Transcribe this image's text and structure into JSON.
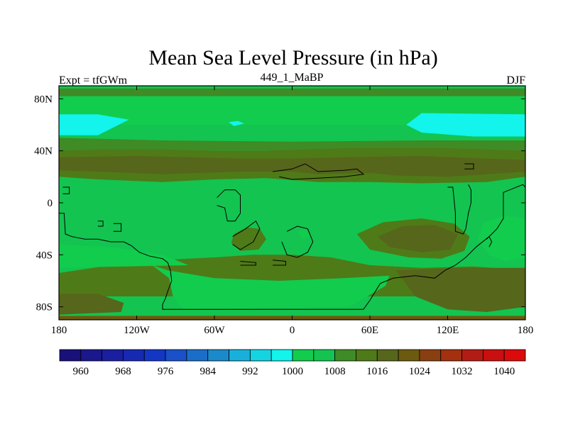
{
  "chart_data": {
    "type": "heatmap",
    "title": "Mean Sea Level Pressure (in hPa)",
    "left_label": "Expt = tfGWm",
    "center_label": "449_1_MaBP",
    "right_label": "DJF",
    "x_ticks": [
      {
        "value": -180,
        "label": "180"
      },
      {
        "value": -120,
        "label": "120W"
      },
      {
        "value": -60,
        "label": "60W"
      },
      {
        "value": 0,
        "label": "0"
      },
      {
        "value": 60,
        "label": "60E"
      },
      {
        "value": 120,
        "label": "120E"
      },
      {
        "value": 180,
        "label": "180"
      }
    ],
    "y_ticks": [
      {
        "value": 80,
        "label": "80N"
      },
      {
        "value": 40,
        "label": "40N"
      },
      {
        "value": 0,
        "label": "0"
      },
      {
        "value": -40,
        "label": "40S"
      },
      {
        "value": -80,
        "label": "80S"
      }
    ],
    "xlim": [
      -180,
      180
    ],
    "ylim": [
      -90,
      90
    ],
    "levels": [
      956,
      960,
      964,
      968,
      972,
      976,
      980,
      984,
      988,
      992,
      996,
      1000,
      1004,
      1008,
      1012,
      1016,
      1020,
      1024,
      1028,
      1032,
      1036,
      1040,
      1044
    ],
    "colors": [
      "#19107a",
      "#1b178c",
      "#1a1f9f",
      "#1629b0",
      "#1336c4",
      "#1a50c8",
      "#1b6ec8",
      "#1a8acb",
      "#18b0db",
      "#15d4e2",
      "#12f4ec",
      "#12cc4e",
      "#13c450",
      "#3f8b26",
      "#4f7a18",
      "#56661b",
      "#6c5a0f",
      "#8a3f10",
      "#a3300f",
      "#b31c14",
      "#c90f0f",
      "#db0b0b"
    ],
    "colorbar_labels": [
      {
        "value": 960,
        "label": "960"
      },
      {
        "value": 968,
        "label": "968"
      },
      {
        "value": 976,
        "label": "976"
      },
      {
        "value": 984,
        "label": "984"
      },
      {
        "value": 992,
        "label": "992"
      },
      {
        "value": 1000,
        "label": "1000"
      },
      {
        "value": 1008,
        "label": "1008"
      },
      {
        "value": 1016,
        "label": "1016"
      },
      {
        "value": 1024,
        "label": "1024"
      },
      {
        "value": 1032,
        "label": "1032"
      },
      {
        "value": 1040,
        "label": "1040"
      }
    ],
    "regions": [
      {
        "name": "band-1010-high-north",
        "value": 1010,
        "poly": [
          [
            -180,
            88
          ],
          [
            180,
            88
          ],
          [
            180,
            82
          ],
          [
            -180,
            82
          ]
        ]
      },
      {
        "name": "band-1002-north",
        "value": 1002,
        "poly": [
          [
            -180,
            82
          ],
          [
            180,
            82
          ],
          [
            180,
            60
          ],
          [
            -180,
            60
          ]
        ]
      },
      {
        "name": "low-998-northwest",
        "value": 998,
        "poly": [
          [
            -180,
            68
          ],
          [
            -150,
            68
          ],
          [
            -126,
            64
          ],
          [
            -150,
            52
          ],
          [
            -180,
            52
          ]
        ]
      },
      {
        "name": "low-998-northeast",
        "value": 998,
        "poly": [
          [
            180,
            68
          ],
          [
            100,
            69
          ],
          [
            88,
            60
          ],
          [
            100,
            54
          ],
          [
            140,
            51
          ],
          [
            180,
            51
          ]
        ]
      },
      {
        "name": "low-998-northcentral",
        "value": 998,
        "poly": [
          [
            -49,
            62
          ],
          [
            -42,
            63
          ],
          [
            -37,
            61
          ],
          [
            -45,
            59
          ]
        ]
      },
      {
        "name": "band-1010-midnorth",
        "value": 1010,
        "poly": [
          [
            -180,
            50
          ],
          [
            -100,
            48
          ],
          [
            0,
            47
          ],
          [
            100,
            48
          ],
          [
            180,
            48
          ],
          [
            180,
            40
          ],
          [
            -180,
            40
          ]
        ]
      },
      {
        "name": "ridge-1014-north",
        "value": 1014,
        "poly": [
          [
            -180,
            40
          ],
          [
            -150,
            41
          ],
          [
            -100,
            41
          ],
          [
            -60,
            40
          ],
          [
            -20,
            40
          ],
          [
            40,
            42
          ],
          [
            120,
            42
          ],
          [
            180,
            40
          ],
          [
            180,
            20
          ],
          [
            150,
            16
          ],
          [
            100,
            15
          ],
          [
            60,
            16
          ],
          [
            20,
            16
          ],
          [
            -20,
            19
          ],
          [
            -60,
            18
          ],
          [
            -100,
            16
          ],
          [
            -150,
            18
          ],
          [
            -180,
            20
          ]
        ]
      },
      {
        "name": "ridge-1018-north",
        "value": 1018,
        "poly": [
          [
            -180,
            35
          ],
          [
            -120,
            36
          ],
          [
            -80,
            35
          ],
          [
            -40,
            34
          ],
          [
            0,
            34
          ],
          [
            40,
            35
          ],
          [
            100,
            36
          ],
          [
            150,
            34
          ],
          [
            180,
            33
          ],
          [
            180,
            24
          ],
          [
            150,
            22
          ],
          [
            120,
            20
          ],
          [
            80,
            21
          ],
          [
            60,
            23
          ],
          [
            20,
            22
          ],
          [
            0,
            24
          ],
          [
            -40,
            24
          ],
          [
            -100,
            22
          ],
          [
            -150,
            24
          ],
          [
            -180,
            25
          ]
        ]
      },
      {
        "name": "ridge-1014-south",
        "value": 1014,
        "poly": [
          [
            -180,
            -54
          ],
          [
            -140,
            -48
          ],
          [
            -100,
            -44
          ],
          [
            -60,
            -42
          ],
          [
            -30,
            -40
          ],
          [
            0,
            -40
          ],
          [
            30,
            -42
          ],
          [
            60,
            -48
          ],
          [
            100,
            -50
          ],
          [
            140,
            -49
          ],
          [
            180,
            -52
          ],
          [
            180,
            -72
          ],
          [
            -180,
            -72
          ]
        ]
      },
      {
        "name": "cell-1014-africa",
        "value": 1014,
        "poly": [
          [
            -45,
            -24
          ],
          [
            -35,
            -19
          ],
          [
            -25,
            -20
          ],
          [
            -20,
            -28
          ],
          [
            -26,
            -36
          ],
          [
            -40,
            -37
          ],
          [
            -47,
            -31
          ]
        ]
      },
      {
        "name": "cell-1014-southpac",
        "value": 1014,
        "poly": [
          [
            50,
            -24
          ],
          [
            70,
            -15
          ],
          [
            100,
            -12
          ],
          [
            125,
            -16
          ],
          [
            137,
            -26
          ],
          [
            133,
            -37
          ],
          [
            115,
            -43
          ],
          [
            90,
            -42
          ],
          [
            60,
            -36
          ]
        ]
      },
      {
        "name": "cell-1018-southpac",
        "value": 1018,
        "poly": [
          [
            66,
            -26
          ],
          [
            85,
            -18
          ],
          [
            110,
            -17
          ],
          [
            128,
            -24
          ],
          [
            122,
            -36
          ],
          [
            100,
            -38
          ],
          [
            75,
            -34
          ]
        ]
      },
      {
        "name": "cell-1002-southeast",
        "value": 1002,
        "poly": [
          [
            148,
            -15
          ],
          [
            163,
            -10
          ],
          [
            180,
            -12
          ],
          [
            180,
            -42
          ],
          [
            164,
            -45
          ],
          [
            152,
            -40
          ],
          [
            143,
            -28
          ]
        ]
      },
      {
        "name": "cell-1002-island",
        "value": 1002,
        "poly": [
          [
            4,
            -22
          ],
          [
            11,
            -21
          ],
          [
            14,
            -26
          ],
          [
            8,
            -28
          ]
        ]
      },
      {
        "name": "cell-1002-southwest",
        "value": 1002,
        "poly": [
          [
            -180,
            -32
          ],
          [
            -140,
            -34
          ],
          [
            -100,
            -40
          ],
          [
            -80,
            -48
          ],
          [
            -180,
            -50
          ]
        ]
      },
      {
        "name": "trough-1002-south",
        "value": 1002,
        "poly": [
          [
            -108,
            -48
          ],
          [
            -96,
            -52
          ],
          [
            -60,
            -58
          ],
          [
            -10,
            -60
          ],
          [
            40,
            -58
          ],
          [
            75,
            -56
          ],
          [
            72,
            -64
          ],
          [
            44,
            -80
          ],
          [
            -84,
            -82
          ],
          [
            -92,
            -72
          ],
          [
            -95,
            -58
          ]
        ]
      },
      {
        "name": "ridge-1018-southeast",
        "value": 1018,
        "poly": [
          [
            80,
            -52
          ],
          [
            130,
            -50
          ],
          [
            180,
            -50
          ],
          [
            180,
            -80
          ],
          [
            150,
            -84
          ],
          [
            120,
            -82
          ],
          [
            95,
            -72
          ]
        ]
      },
      {
        "name": "ridge-1018-southwest",
        "value": 1018,
        "poly": [
          [
            -180,
            -70
          ],
          [
            -150,
            -70
          ],
          [
            -130,
            -77
          ],
          [
            -132,
            -84
          ],
          [
            -180,
            -86
          ]
        ]
      },
      {
        "name": "band-1022-south-edge",
        "value": 1022,
        "poly": [
          [
            -180,
            -87
          ],
          [
            180,
            -87
          ],
          [
            180,
            -90
          ],
          [
            -180,
            -90
          ]
        ]
      }
    ],
    "coastlines": [
      [
        [
          -177,
          12
        ],
        [
          -172,
          12
        ],
        [
          -172,
          7
        ],
        [
          -177,
          7
        ]
      ],
      [
        [
          -180,
          -8
        ],
        [
          -176,
          -8
        ],
        [
          -175,
          -24
        ],
        [
          -170,
          -26
        ],
        [
          -160,
          -28
        ],
        [
          -150,
          -28
        ],
        [
          -140,
          -30
        ],
        [
          -130,
          -30
        ],
        [
          -124,
          -33
        ],
        [
          -118,
          -38
        ],
        [
          -110,
          -41
        ],
        [
          -100,
          -43
        ],
        [
          -96,
          -46
        ],
        [
          -94,
          -52
        ],
        [
          -93,
          -60
        ],
        [
          -96,
          -68
        ],
        [
          -98,
          -74
        ],
        [
          -100,
          -78
        ],
        [
          -100,
          -82
        ],
        [
          -70,
          -82
        ],
        [
          -30,
          -82
        ],
        [
          10,
          -82
        ],
        [
          55,
          -82
        ],
        [
          60,
          -75
        ],
        [
          68,
          -62
        ],
        [
          78,
          -58
        ],
        [
          95,
          -56
        ],
        [
          110,
          -58
        ],
        [
          118,
          -52
        ],
        [
          126,
          -48
        ],
        [
          134,
          -42
        ],
        [
          142,
          -34
        ],
        [
          152,
          -26
        ],
        [
          158,
          -20
        ],
        [
          163,
          -12
        ],
        [
          163,
          8
        ],
        [
          178,
          14
        ],
        [
          180,
          12
        ]
      ],
      [
        [
          -138,
          -16
        ],
        [
          -132,
          -16
        ],
        [
          -132,
          -22
        ],
        [
          -138,
          -22
        ]
      ],
      [
        [
          -150,
          -14
        ],
        [
          -146,
          -14
        ],
        [
          -146,
          -18
        ],
        [
          -150,
          -18
        ]
      ],
      [
        [
          -58,
          4
        ],
        [
          -52,
          10
        ],
        [
          -44,
          10
        ],
        [
          -40,
          6
        ],
        [
          -40,
          -8
        ],
        [
          -44,
          -14
        ],
        [
          -50,
          -14
        ],
        [
          -52,
          -4
        ],
        [
          -58,
          -2
        ]
      ],
      [
        [
          -46,
          -26
        ],
        [
          -36,
          -20
        ],
        [
          -28,
          -14
        ],
        [
          -25,
          -20
        ],
        [
          -30,
          -30
        ],
        [
          -40,
          -36
        ],
        [
          -46,
          -32
        ]
      ],
      [
        [
          -40,
          -45
        ],
        [
          -28,
          -46
        ],
        [
          -28,
          -48
        ],
        [
          -40,
          -48
        ]
      ],
      [
        [
          -15,
          24
        ],
        [
          0,
          26
        ],
        [
          10,
          30
        ],
        [
          20,
          24
        ],
        [
          40,
          25
        ],
        [
          50,
          26
        ],
        [
          55,
          22
        ],
        [
          40,
          20
        ],
        [
          20,
          19
        ],
        [
          0,
          18
        ],
        [
          -10,
          20
        ]
      ],
      [
        [
          -4,
          -22
        ],
        [
          4,
          -18
        ],
        [
          12,
          -20
        ],
        [
          16,
          -30
        ],
        [
          12,
          -38
        ],
        [
          4,
          -42
        ],
        [
          -4,
          -40
        ],
        [
          -8,
          -30
        ]
      ],
      [
        [
          -15,
          -44
        ],
        [
          -5,
          -45
        ],
        [
          -5,
          -48
        ],
        [
          -15,
          -48
        ]
      ],
      [
        [
          133,
          30
        ],
        [
          140,
          30
        ],
        [
          140,
          26
        ],
        [
          133,
          26
        ]
      ],
      [
        [
          120,
          12
        ],
        [
          124,
          12
        ],
        [
          126,
          -8
        ],
        [
          126,
          -22
        ],
        [
          132,
          -24
        ],
        [
          134,
          -20
        ],
        [
          136,
          -8
        ],
        [
          138,
          0
        ],
        [
          138,
          10
        ],
        [
          136,
          14
        ]
      ],
      [
        [
          150,
          -28
        ],
        [
          152,
          -26
        ],
        [
          154,
          -30
        ],
        [
          152,
          -34
        ]
      ]
    ]
  }
}
